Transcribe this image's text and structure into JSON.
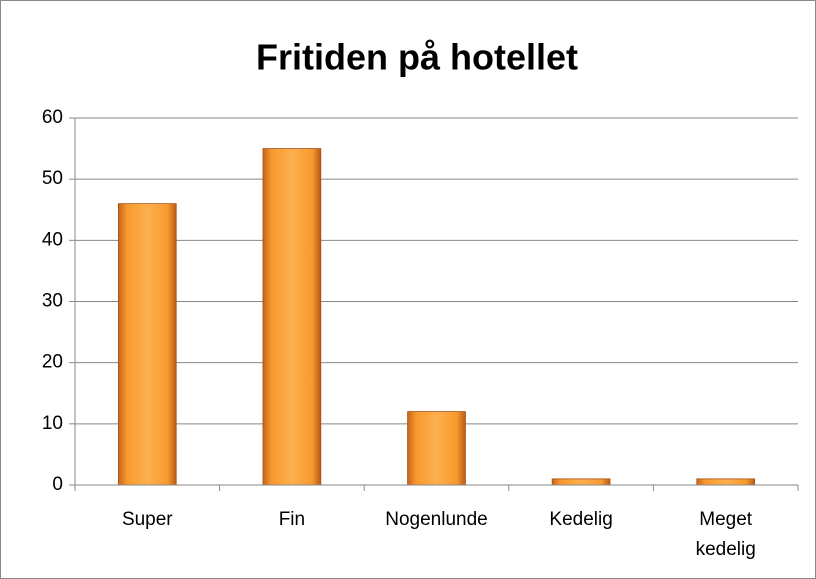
{
  "chart_data": {
    "type": "bar",
    "title": "Fritiden på hotellet",
    "categories": [
      "Super",
      "Fin",
      "Nogenlunde",
      "Kedelig",
      "Meget kedelig"
    ],
    "values": [
      46,
      55,
      12,
      1,
      1
    ],
    "color": "#f79a2e",
    "ylim": [
      0,
      60
    ],
    "yticks": [
      0,
      10,
      20,
      30,
      40,
      50,
      60
    ],
    "grid": true
  }
}
